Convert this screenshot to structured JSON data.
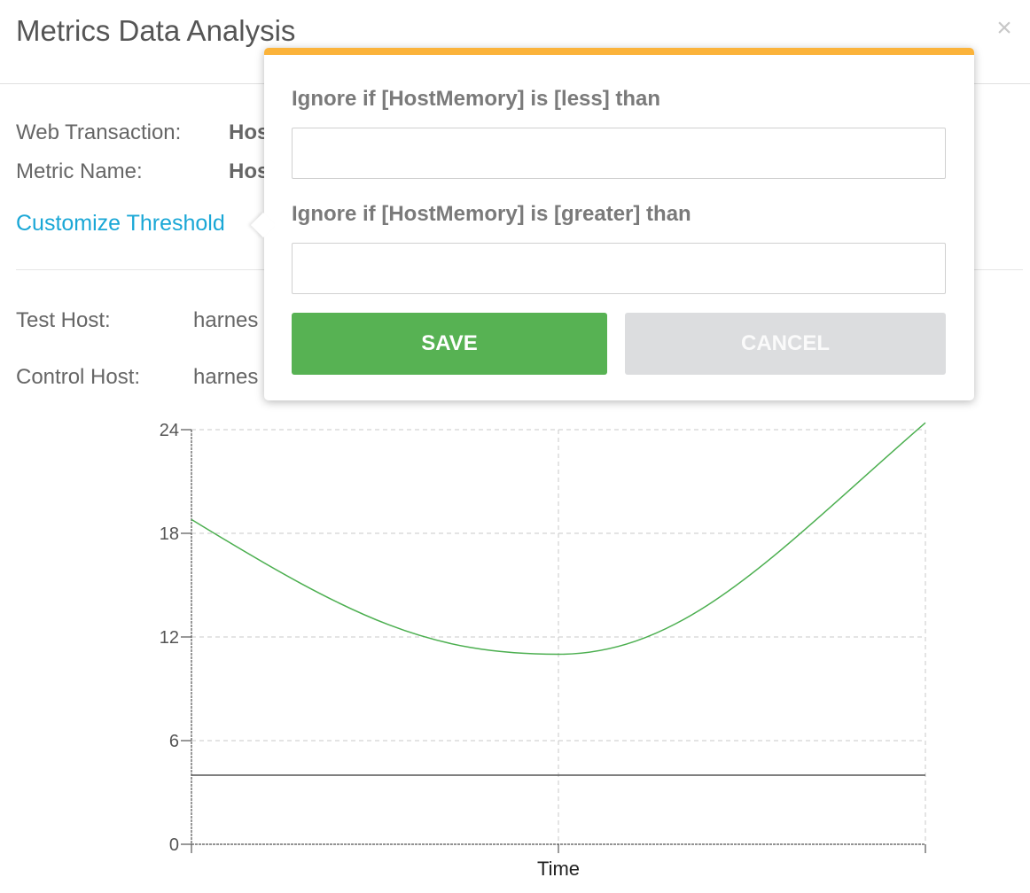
{
  "modal": {
    "title": "Metrics Data Analysis",
    "close_icon": "×"
  },
  "details": {
    "web_transaction_label": "Web Transaction:",
    "web_transaction_value": "Hos",
    "metric_name_label": "Metric Name:",
    "metric_name_value": "Hos",
    "customize_link": "Customize Threshold",
    "test_host_label": "Test Host:",
    "test_host_value": "harnes",
    "control_host_label": "Control Host:",
    "control_host_value": "harnes"
  },
  "popover": {
    "accent_color": "#fbb33a",
    "less_label": "Ignore if [HostMemory] is [less] than",
    "less_value": "",
    "greater_label": "Ignore if [HostMemory] is [greater] than",
    "greater_value": "",
    "save_label": "SAVE",
    "cancel_label": "CANCEL",
    "save_color": "#57b253",
    "cancel_color": "#dcdddf"
  },
  "chart_data": {
    "type": "line",
    "xlabel": "Time",
    "ylabel": "",
    "ylim": [
      0,
      24
    ],
    "y_ticks": [
      0,
      6,
      12,
      18,
      24
    ],
    "grid": true,
    "series": [
      {
        "color": "#4caf50",
        "x": [
          0,
          0.5,
          1
        ],
        "y": [
          18.8,
          11.0,
          24.4
        ]
      },
      {
        "color": "#555555",
        "x": [
          0,
          1
        ],
        "y": [
          4.0,
          4.0
        ]
      }
    ]
  }
}
